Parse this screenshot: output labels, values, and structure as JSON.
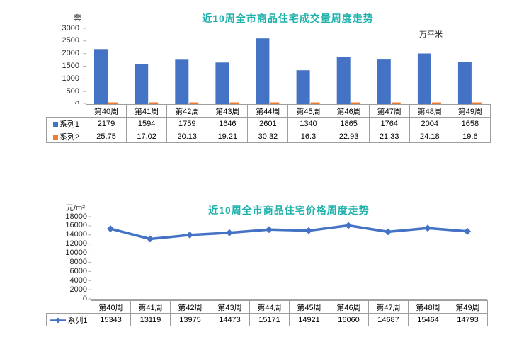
{
  "page": {
    "background": "#ffffff"
  },
  "colors": {
    "title_teal": "#1FB2AC",
    "series1_blue": "#4472C4",
    "series2_orange": "#ED7D31",
    "axis_gray": "#A6A6A6",
    "table_border_gray": "#9e9e9e",
    "text_black": "#262626"
  },
  "chart_data": [
    {
      "type": "bar",
      "title": "近10周全市商品住宅成交量周度走势",
      "title_color": "#1FB2AC",
      "unit_left": "套",
      "unit_right": "万平米",
      "categories": [
        "第40周",
        "第41周",
        "第42周",
        "第43周",
        "第44周",
        "第45周",
        "第46周",
        "第47周",
        "第48周",
        "第49周"
      ],
      "series": [
        {
          "name": "系列1",
          "marker": "square",
          "color": "#4472C4",
          "values": [
            2179,
            1594,
            1759,
            1646,
            2601,
            1340,
            1865,
            1764,
            2004,
            1658
          ]
        },
        {
          "name": "系列2",
          "marker": "square",
          "color": "#ED7D31",
          "values": [
            25.75,
            17.02,
            20.13,
            19.21,
            30.32,
            16.3,
            22.93,
            21.33,
            24.18,
            19.6
          ]
        }
      ],
      "ylim": [
        0,
        3000
      ],
      "ytick_step": 500,
      "y_tick_labels": [
        "3000",
        "2500",
        "2000",
        "1500",
        "1000",
        "500",
        "0"
      ],
      "grid": false,
      "legend_position": "table-left",
      "data_table_shown": true
    },
    {
      "type": "line",
      "title": "近10周全市商品住宅价格周度走势",
      "title_color": "#1FB2AC",
      "unit_left": "元/m²",
      "categories": [
        "第40周",
        "第41周",
        "第42周",
        "第43周",
        "第44周",
        "第45周",
        "第46周",
        "第47周",
        "第48周",
        "第49周"
      ],
      "series": [
        {
          "name": "系列1",
          "marker": "diamond",
          "color": "#4472C4",
          "values": [
            15343,
            13119,
            13975,
            14473,
            15171,
            14921,
            16060,
            14687,
            15464,
            14793
          ]
        }
      ],
      "ylim": [
        0,
        18000
      ],
      "ytick_step": 2000,
      "y_tick_labels": [
        "18000",
        "16000",
        "14000",
        "12000",
        "10000",
        "8000",
        "6000",
        "4000",
        "2000",
        "0"
      ],
      "grid": false,
      "legend_position": "table-left",
      "data_table_shown": true
    }
  ]
}
